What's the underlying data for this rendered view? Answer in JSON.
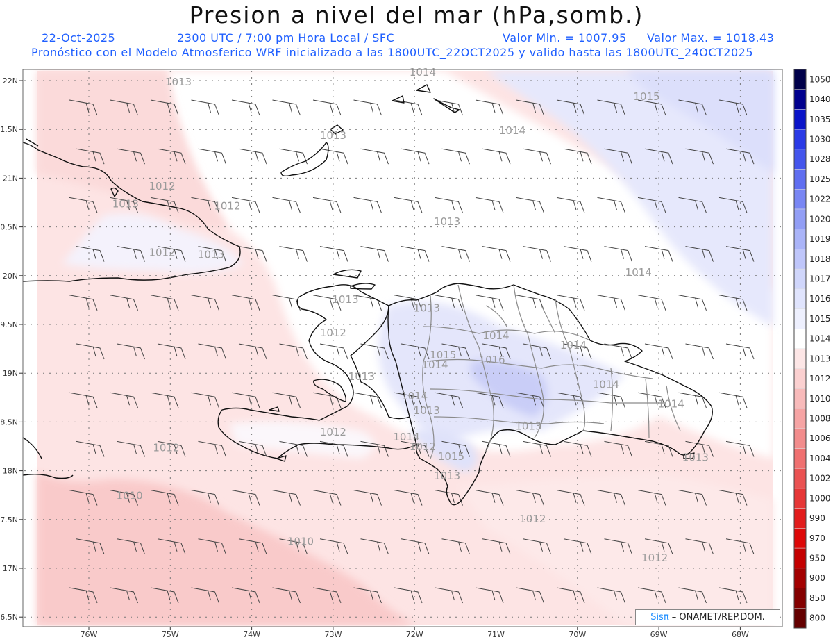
{
  "title": "Presion a nivel del mar (hPa,somb.)",
  "header": {
    "date": "22-Oct-2025",
    "time": "2300 UTC / 7:00 pm Hora Local / SFC",
    "min_label": "Valor Min. = 1007.95",
    "max_label": "Valor Max. = 1018.43",
    "model_line": "Pronóstico con el Modelo Atmosferico WRF inicializado a las 1800UTC_22OCT2025 y valido hasta las  1800UTC_24OCT2025"
  },
  "axes": {
    "lat_labels": [
      "22N",
      "1.5N",
      "21N",
      "0.5N",
      "20N",
      "9.5N",
      "19N",
      "8.5N",
      "18N",
      "7.5N",
      "17N",
      "6.5N"
    ],
    "lon_labels": [
      "76W",
      "75W",
      "74W",
      "73W",
      "72W",
      "71W",
      "70W",
      "69W",
      "68W"
    ]
  },
  "contour_labels": [
    {
      "text": "1013",
      "lon": -74.9,
      "lat": 21.95
    },
    {
      "text": "1014",
      "lon": -71.9,
      "lat": 22.05
    },
    {
      "text": "1015",
      "lon": -69.15,
      "lat": 21.8
    },
    {
      "text": "1013",
      "lon": -73.0,
      "lat": 21.4
    },
    {
      "text": "1014",
      "lon": -70.8,
      "lat": 21.45
    },
    {
      "text": "1012",
      "lon": -75.1,
      "lat": 20.88
    },
    {
      "text": "1013",
      "lon": -75.55,
      "lat": 20.7
    },
    {
      "text": "1012",
      "lon": -74.3,
      "lat": 20.68
    },
    {
      "text": "1013",
      "lon": -71.6,
      "lat": 20.52
    },
    {
      "text": "1012",
      "lon": -75.1,
      "lat": 20.2
    },
    {
      "text": "1013",
      "lon": -74.5,
      "lat": 20.18
    },
    {
      "text": "1014",
      "lon": -69.25,
      "lat": 20.0
    },
    {
      "text": "1013",
      "lon": -72.85,
      "lat": 19.72
    },
    {
      "text": "1013",
      "lon": -71.85,
      "lat": 19.63
    },
    {
      "text": "1012",
      "lon": -73.0,
      "lat": 19.38
    },
    {
      "text": "1014",
      "lon": -71.0,
      "lat": 19.35
    },
    {
      "text": "1014",
      "lon": -70.05,
      "lat": 19.25
    },
    {
      "text": "1015",
      "lon": -71.65,
      "lat": 19.15
    },
    {
      "text": "1016",
      "lon": -71.05,
      "lat": 19.1
    },
    {
      "text": "1014",
      "lon": -71.75,
      "lat": 19.05
    },
    {
      "text": "1013",
      "lon": -72.65,
      "lat": 18.93
    },
    {
      "text": "1014",
      "lon": -69.65,
      "lat": 18.85
    },
    {
      "text": "1014",
      "lon": -72.0,
      "lat": 18.73
    },
    {
      "text": "1014",
      "lon": -68.85,
      "lat": 18.65
    },
    {
      "text": "1013",
      "lon": -71.85,
      "lat": 18.58
    },
    {
      "text": "1013",
      "lon": -70.6,
      "lat": 18.42
    },
    {
      "text": "1012",
      "lon": -73.0,
      "lat": 18.36
    },
    {
      "text": "1014",
      "lon": -72.1,
      "lat": 18.31
    },
    {
      "text": "1012",
      "lon": -71.9,
      "lat": 18.21
    },
    {
      "text": "1012",
      "lon": -75.05,
      "lat": 18.2
    },
    {
      "text": "1015",
      "lon": -71.55,
      "lat": 18.11
    },
    {
      "text": "1013",
      "lon": -68.55,
      "lat": 18.1
    },
    {
      "text": "1013",
      "lon": -71.6,
      "lat": 17.91
    },
    {
      "text": "1010",
      "lon": -75.5,
      "lat": 17.71
    },
    {
      "text": "1012",
      "lon": -70.55,
      "lat": 17.47
    },
    {
      "text": "1010",
      "lon": -73.4,
      "lat": 17.24
    },
    {
      "text": "1012",
      "lon": -69.05,
      "lat": 17.07
    }
  ],
  "colorbar": {
    "levels": [
      "1050",
      "1040",
      "1035",
      "1030",
      "1028",
      "1025",
      "1022",
      "1020",
      "1019",
      "1018",
      "1017",
      "1016",
      "1015",
      "1014",
      "1013",
      "1012",
      "1010",
      "1008",
      "1006",
      "1004",
      "1002",
      "1000",
      "990",
      "970",
      "950",
      "900",
      "850",
      "800"
    ],
    "colors": [
      "#00004a",
      "#00008e",
      "#0a14c8",
      "#2a3ae6",
      "#4455ec",
      "#5f6ef0",
      "#7986f3",
      "#929ef5",
      "#aab4f8",
      "#bfc6fa",
      "#d0d6fb",
      "#e0e4fd",
      "#eef0fe",
      "#ffffff",
      "#fde6e6",
      "#fbd0d0",
      "#f8baba",
      "#f6a4a4",
      "#f28c8c",
      "#ef7070",
      "#ea5252",
      "#e63636",
      "#e21c1c",
      "#dd0808",
      "#c40000",
      "#a30000",
      "#840000",
      "#640000"
    ]
  },
  "credit": {
    "brand": "Sisπ",
    "text": " – ONAMET/REP.DOM."
  }
}
